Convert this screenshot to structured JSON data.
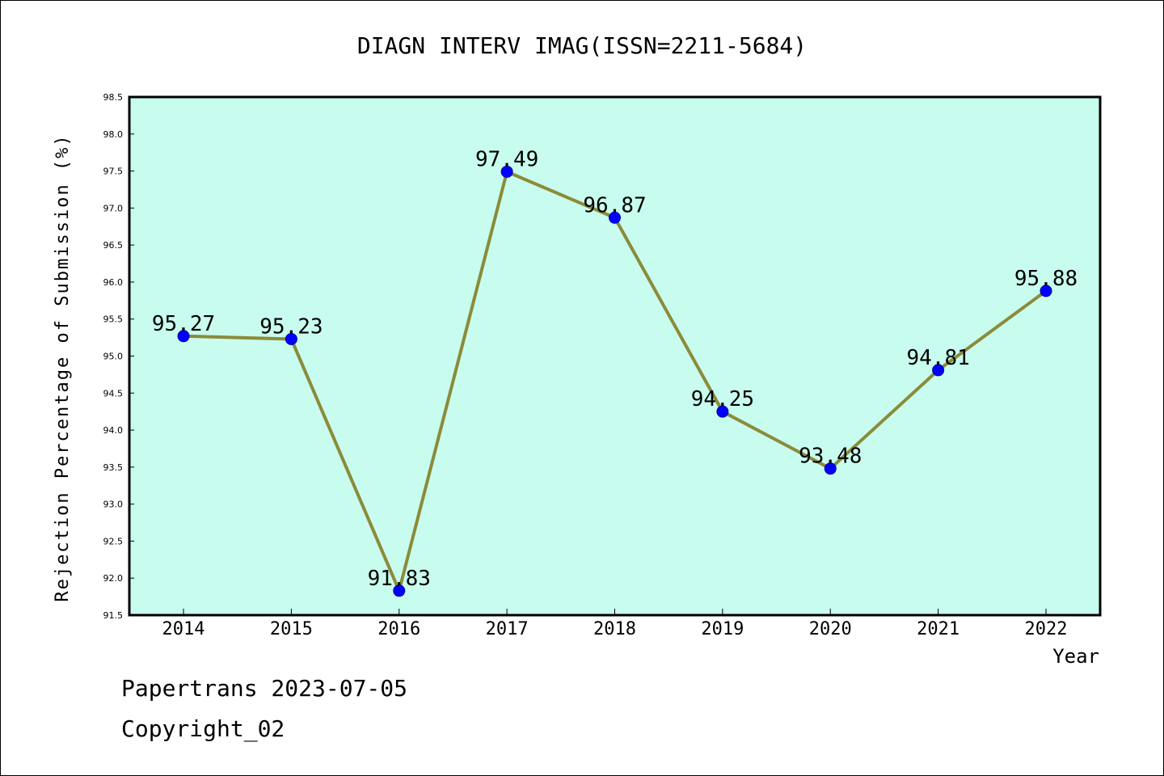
{
  "chart_data": {
    "type": "line",
    "title": "DIAGN INTERV IMAG(ISSN=2211-5684)",
    "xlabel": "Year",
    "ylabel": "Rejection Percentage of Submission (%)",
    "categories": [
      "2014",
      "2015",
      "2016",
      "2017",
      "2018",
      "2019",
      "2020",
      "2021",
      "2022"
    ],
    "series": [
      {
        "values": [
          95.27,
          95.23,
          91.83,
          97.49,
          96.87,
          94.25,
          93.48,
          94.81,
          95.88
        ],
        "labels": [
          "95.27",
          "95.23",
          "91.83",
          "97.49",
          "96.87",
          "94.25",
          "93.48",
          "94.81",
          "95.88"
        ]
      }
    ],
    "ylim": [
      91.5,
      98.5
    ],
    "yticks": [
      "91.5",
      "92.0",
      "92.5",
      "93.0",
      "93.5",
      "94.0",
      "94.5",
      "95.0",
      "95.5",
      "96.0",
      "96.5",
      "97.0",
      "97.5",
      "98.0",
      "98.5"
    ],
    "grid": false,
    "legend": "none",
    "colors": {
      "plot_background": "#c8fcee",
      "line": "#8b8b3a",
      "marker": "#0000ff"
    }
  },
  "footer": {
    "line1": "Papertrans 2023-07-05",
    "line2": "Copyright_02"
  }
}
